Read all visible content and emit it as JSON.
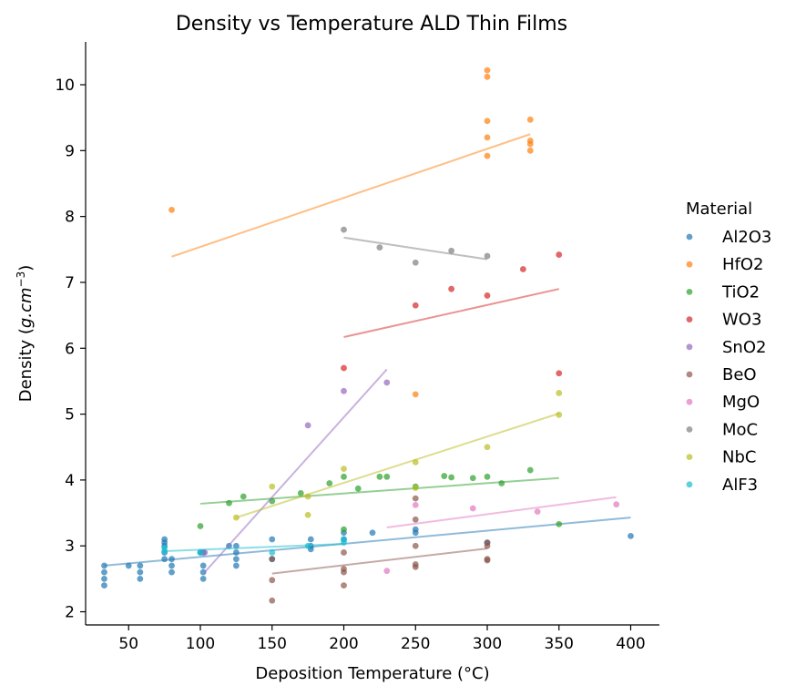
{
  "chart_data": {
    "type": "scatter",
    "title": "Density vs Temperature ALD Thin Films",
    "xlabel": "Deposition Temperature (°C)",
    "ylabel_prefix": "Density (",
    "ylabel_var": "g.cm",
    "ylabel_sup": "−3",
    "ylabel_suffix": ")",
    "xlim": [
      20,
      420
    ],
    "ylim": [
      1.8,
      10.65
    ],
    "xticks": [
      50,
      100,
      150,
      200,
      250,
      300,
      350,
      400
    ],
    "yticks": [
      2,
      3,
      4,
      5,
      6,
      7,
      8,
      9,
      10
    ],
    "legend": {
      "title": "Material",
      "placement": "right"
    },
    "series": [
      {
        "name": "Al2O3",
        "color": "#1f77b4",
        "points": [
          [
            33,
            2.4
          ],
          [
            33,
            2.5
          ],
          [
            33,
            2.6
          ],
          [
            33,
            2.7
          ],
          [
            50,
            2.7
          ],
          [
            58,
            2.5
          ],
          [
            58,
            2.6
          ],
          [
            58,
            2.7
          ],
          [
            75,
            2.8
          ],
          [
            75,
            2.9
          ],
          [
            75,
            3.0
          ],
          [
            75,
            3.05
          ],
          [
            75,
            3.1
          ],
          [
            80,
            2.6
          ],
          [
            80,
            2.7
          ],
          [
            80,
            2.8
          ],
          [
            100,
            2.9
          ],
          [
            102,
            2.5
          ],
          [
            102,
            2.6
          ],
          [
            102,
            2.7
          ],
          [
            102,
            2.9
          ],
          [
            120,
            3.0
          ],
          [
            125,
            2.7
          ],
          [
            125,
            2.8
          ],
          [
            125,
            2.9
          ],
          [
            125,
            3.0
          ],
          [
            150,
            2.8
          ],
          [
            150,
            3.1
          ],
          [
            177,
            2.95
          ],
          [
            177,
            3.0
          ],
          [
            177,
            3.1
          ],
          [
            200,
            3.1
          ],
          [
            200,
            3.2
          ],
          [
            220,
            3.2
          ],
          [
            250,
            3.2
          ],
          [
            250,
            3.25
          ],
          [
            300,
            3.05
          ],
          [
            400,
            3.15
          ]
        ],
        "trend": [
          [
            33,
            2.7
          ],
          [
            400,
            3.43
          ]
        ]
      },
      {
        "name": "HfO2",
        "color": "#ff7f0e",
        "points": [
          [
            80,
            8.1
          ],
          [
            250,
            5.3
          ],
          [
            300,
            8.92
          ],
          [
            300,
            9.2
          ],
          [
            300,
            9.45
          ],
          [
            300,
            10.12
          ],
          [
            300,
            10.22
          ],
          [
            330,
            9.0
          ],
          [
            330,
            9.1
          ],
          [
            330,
            9.15
          ],
          [
            330,
            9.47
          ]
        ],
        "trend": [
          [
            80,
            7.39
          ],
          [
            330,
            9.25
          ]
        ]
      },
      {
        "name": "TiO2",
        "color": "#2ca02c",
        "points": [
          [
            100,
            3.3
          ],
          [
            120,
            3.65
          ],
          [
            130,
            3.75
          ],
          [
            150,
            3.68
          ],
          [
            170,
            3.8
          ],
          [
            190,
            3.95
          ],
          [
            200,
            4.05
          ],
          [
            200,
            3.25
          ],
          [
            210,
            3.87
          ],
          [
            225,
            4.05
          ],
          [
            230,
            4.05
          ],
          [
            250,
            3.9
          ],
          [
            270,
            4.06
          ],
          [
            275,
            4.04
          ],
          [
            290,
            4.03
          ],
          [
            300,
            4.05
          ],
          [
            310,
            3.95
          ],
          [
            330,
            4.15
          ],
          [
            350,
            3.33
          ]
        ],
        "trend": [
          [
            100,
            3.64
          ],
          [
            350,
            4.03
          ]
        ]
      },
      {
        "name": "WO3",
        "color": "#d62728",
        "points": [
          [
            200,
            5.7
          ],
          [
            250,
            6.65
          ],
          [
            275,
            6.9
          ],
          [
            300,
            6.8
          ],
          [
            325,
            7.2
          ],
          [
            350,
            7.42
          ],
          [
            350,
            5.62
          ]
        ],
        "trend": [
          [
            200,
            6.17
          ],
          [
            350,
            6.9
          ]
        ]
      },
      {
        "name": "SnO2",
        "color": "#9467bd",
        "points": [
          [
            103,
            2.9
          ],
          [
            175,
            4.83
          ],
          [
            200,
            5.35
          ],
          [
            230,
            5.48
          ]
        ],
        "trend": [
          [
            103,
            2.6
          ],
          [
            230,
            5.68
          ]
        ]
      },
      {
        "name": "BeO",
        "color": "#8c564b",
        "points": [
          [
            150,
            2.17
          ],
          [
            150,
            2.48
          ],
          [
            150,
            2.8
          ],
          [
            200,
            2.4
          ],
          [
            200,
            2.6
          ],
          [
            200,
            2.65
          ],
          [
            200,
            2.9
          ],
          [
            250,
            2.68
          ],
          [
            250,
            2.72
          ],
          [
            250,
            3.0
          ],
          [
            250,
            3.4
          ],
          [
            250,
            3.72
          ],
          [
            300,
            2.78
          ],
          [
            300,
            2.8
          ],
          [
            300,
            3.0
          ],
          [
            300,
            3.05
          ]
        ],
        "trend": [
          [
            150,
            2.58
          ],
          [
            300,
            2.96
          ]
        ]
      },
      {
        "name": "MgO",
        "color": "#e377c2",
        "points": [
          [
            230,
            2.62
          ],
          [
            250,
            3.62
          ],
          [
            290,
            3.57
          ],
          [
            335,
            3.52
          ],
          [
            390,
            3.63
          ]
        ],
        "trend": [
          [
            230,
            3.28
          ],
          [
            390,
            3.74
          ]
        ]
      },
      {
        "name": "MoC",
        "color": "#7f7f7f",
        "points": [
          [
            200,
            7.8
          ],
          [
            225,
            7.53
          ],
          [
            250,
            7.3
          ],
          [
            275,
            7.48
          ],
          [
            300,
            7.4
          ]
        ],
        "trend": [
          [
            200,
            7.68
          ],
          [
            300,
            7.35
          ]
        ]
      },
      {
        "name": "NbC",
        "color": "#bcbd22",
        "points": [
          [
            125,
            3.43
          ],
          [
            150,
            3.9
          ],
          [
            175,
            3.47
          ],
          [
            175,
            3.75
          ],
          [
            200,
            4.17
          ],
          [
            250,
            3.88
          ],
          [
            250,
            4.27
          ],
          [
            300,
            4.5
          ],
          [
            350,
            4.99
          ],
          [
            350,
            5.32
          ]
        ],
        "trend": [
          [
            125,
            3.43
          ],
          [
            350,
            5.01
          ]
        ]
      },
      {
        "name": "AlF3",
        "color": "#17becf",
        "points": [
          [
            75,
            2.92
          ],
          [
            75,
            2.97
          ],
          [
            100,
            2.9
          ],
          [
            150,
            2.9
          ],
          [
            175,
            3.0
          ],
          [
            200,
            3.05
          ],
          [
            200,
            3.1
          ]
        ],
        "trend": [
          [
            75,
            2.92
          ],
          [
            200,
            3.03
          ]
        ]
      }
    ]
  }
}
